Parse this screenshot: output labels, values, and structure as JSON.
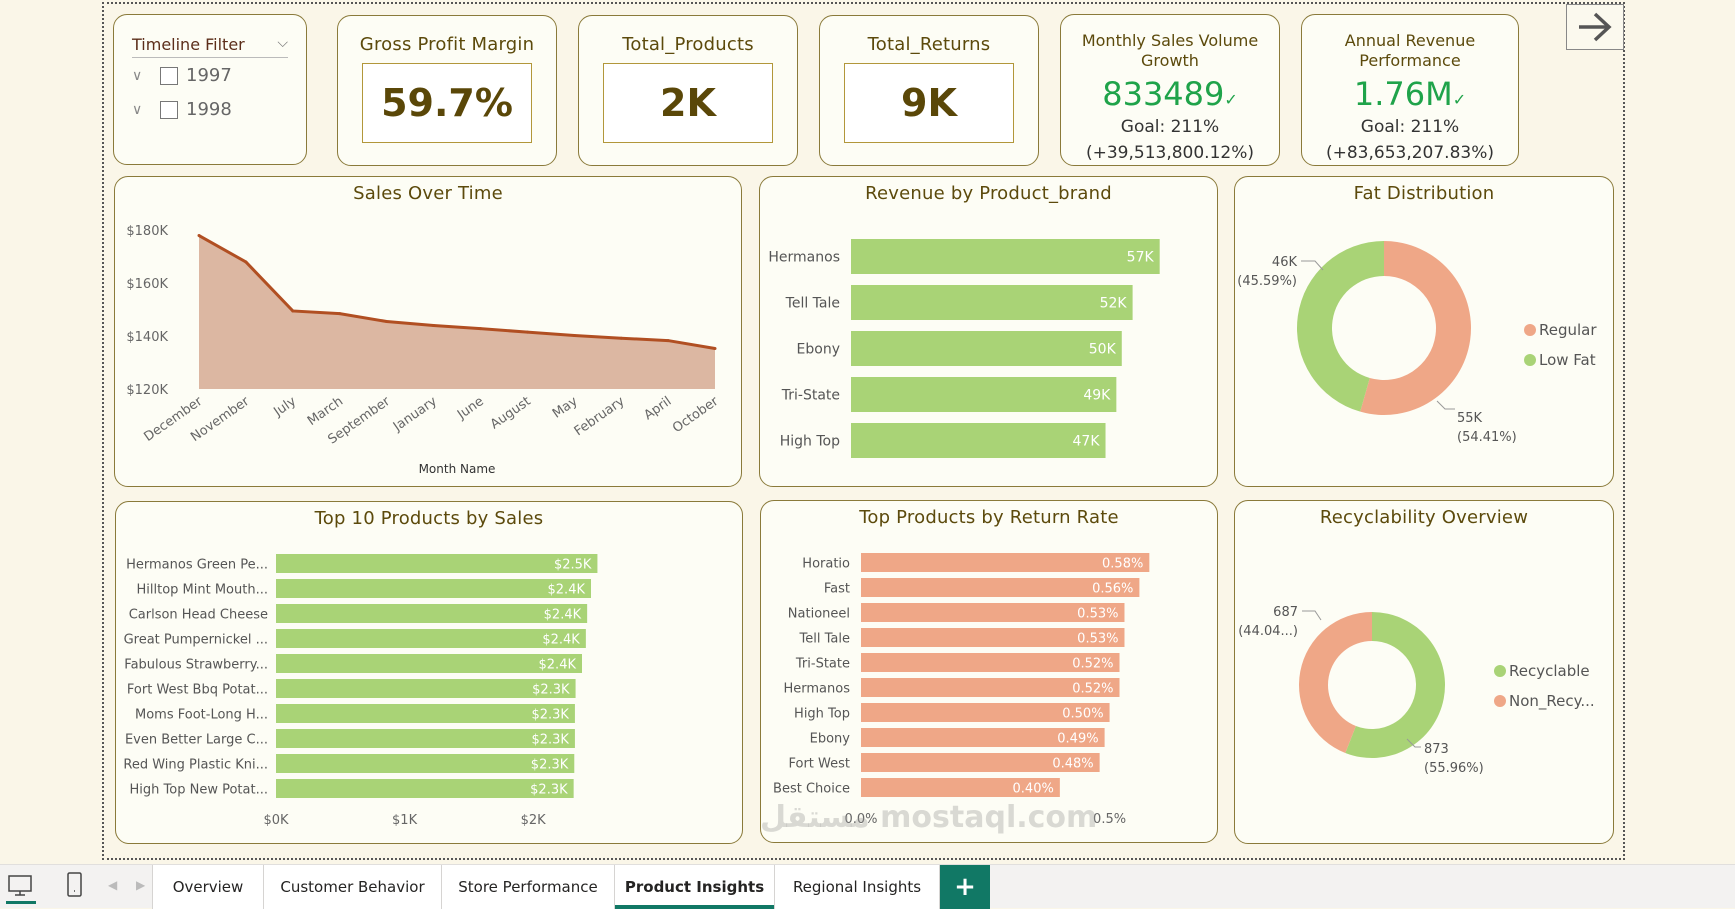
{
  "slicer": {
    "title": "Timeline Filter",
    "items": [
      {
        "label": "1997",
        "checked": false
      },
      {
        "label": "1998",
        "checked": false
      }
    ]
  },
  "kpis": {
    "gross_profit_margin": {
      "title": "Gross Profit Margin",
      "value": "59.7%"
    },
    "total_products": {
      "title": "Total_Products",
      "value": "2K"
    },
    "total_returns": {
      "title": "Total_Returns",
      "value": "9K"
    },
    "monthly_sales": {
      "title": "Monthly Sales Volume Growth",
      "value": "833489",
      "check": "✓",
      "goal": "Goal: 211%",
      "delta": "(+39,513,800.12%)"
    },
    "annual_revenue": {
      "title": "Annual Revenue Performance",
      "value": "1.76M",
      "check": "✓",
      "goal": "Goal: 211%",
      "delta": "(+83,653,207.83%)"
    }
  },
  "colors": {
    "green": "#a9d376",
    "salmon": "#efa787",
    "line": "#b14f22",
    "area": "#dcb7a2",
    "title": "#5c4a0c",
    "kpi_green": "#1fa34a",
    "tab_accent": "#117865"
  },
  "chart_data": [
    {
      "id": "sales_over_time",
      "type": "area",
      "title": "Sales Over Time",
      "xlabel": "Month Name",
      "ylabel": "",
      "categories": [
        "December",
        "November",
        "July",
        "March",
        "September",
        "January",
        "June",
        "August",
        "May",
        "February",
        "April",
        "October"
      ],
      "values": [
        178000,
        168000,
        149500,
        148500,
        145500,
        144000,
        142800,
        141500,
        140200,
        139200,
        138300,
        135300
      ],
      "ylim": [
        120000,
        185000
      ],
      "yticks": [
        120000,
        140000,
        160000,
        180000
      ],
      "ytick_labels": [
        "$120K",
        "$140K",
        "$160K",
        "$180K"
      ],
      "grid": false
    },
    {
      "id": "revenue_by_brand",
      "type": "bar",
      "orientation": "horizontal",
      "title": "Revenue by Product_brand",
      "categories": [
        "Hermanos",
        "Tell Tale",
        "Ebony",
        "Tri-State",
        "High Top"
      ],
      "values": [
        57000,
        52000,
        50000,
        49000,
        47000
      ],
      "data_labels": [
        "57K",
        "52K",
        "50K",
        "49K",
        "47K"
      ],
      "xlim": [
        0,
        65000
      ]
    },
    {
      "id": "fat_distribution",
      "type": "pie",
      "donut": true,
      "title": "Fat Distribution",
      "legend": "right",
      "slices": [
        {
          "name": "Regular",
          "value": 55000,
          "label": "55K",
          "pct": "(54.41%)",
          "percent": 54.41,
          "color": "#efa787"
        },
        {
          "name": "Low Fat",
          "value": 46000,
          "label": "46K",
          "pct": "(45.59%)",
          "percent": 45.59,
          "color": "#a9d376"
        }
      ]
    },
    {
      "id": "top10_products",
      "type": "bar",
      "orientation": "horizontal",
      "title": "Top 10 Products by Sales",
      "categories": [
        "Hermanos Green Pe...",
        "Hilltop Mint Mouth...",
        "Carlson Head Cheese",
        "Great Pumpernickel ...",
        "Fabulous Strawberry...",
        "Fort West Bbq Potat...",
        "Moms Foot-Long H...",
        "Even Better Large C...",
        "Red Wing Plastic Kni...",
        "High Top New Potat..."
      ],
      "values": [
        2500,
        2450,
        2420,
        2410,
        2380,
        2330,
        2325,
        2325,
        2320,
        2315
      ],
      "data_labels": [
        "$2.5K",
        "$2.4K",
        "$2.4K",
        "$2.4K",
        "$2.4K",
        "$2.3K",
        "$2.3K",
        "$2.3K",
        "$2.3K",
        "$2.3K"
      ],
      "xticks": [
        0,
        1000,
        2000
      ],
      "xtick_labels": [
        "$0K",
        "$1K",
        "$2K"
      ],
      "xlim": [
        0,
        2800
      ]
    },
    {
      "id": "return_rate",
      "type": "bar",
      "orientation": "horizontal",
      "title": "Top Products by Return Rate",
      "categories": [
        "Horatio",
        "Fast",
        "Nationeel",
        "Tell Tale",
        "Tri-State",
        "Hermanos",
        "High Top",
        "Ebony",
        "Fort West",
        "Best Choice"
      ],
      "values": [
        0.58,
        0.56,
        0.53,
        0.53,
        0.52,
        0.52,
        0.5,
        0.49,
        0.48,
        0.4
      ],
      "data_labels": [
        "0.58%",
        "0.56%",
        "0.53%",
        "0.53%",
        "0.52%",
        "0.52%",
        "0.50%",
        "0.49%",
        "0.48%",
        "0.40%"
      ],
      "xticks": [
        0,
        0.5
      ],
      "xtick_labels": [
        "0.0%",
        "0.5%"
      ],
      "xlim": [
        0,
        0.7
      ]
    },
    {
      "id": "recyclability",
      "type": "pie",
      "donut": true,
      "title": "Recyclability Overview",
      "legend": "right",
      "slices": [
        {
          "name": "Recyclable",
          "value": 873,
          "label": "873",
          "pct": "(55.96%)",
          "percent": 55.96,
          "color": "#a9d376"
        },
        {
          "name": "Non_Recy...",
          "value": 687,
          "label": "687",
          "pct": "(44.04...)",
          "percent": 44.04,
          "color": "#efa787"
        }
      ]
    }
  ],
  "tabs": [
    {
      "label": "Overview",
      "active": false
    },
    {
      "label": "Customer Behavior",
      "active": false
    },
    {
      "label": "Store Performance",
      "active": false
    },
    {
      "label": "Product Insights",
      "active": true
    },
    {
      "label": "Regional Insights",
      "active": false
    }
  ],
  "add_tab_label": "+",
  "nav_arrow": "→",
  "watermark": "مستقل mostaql.com"
}
